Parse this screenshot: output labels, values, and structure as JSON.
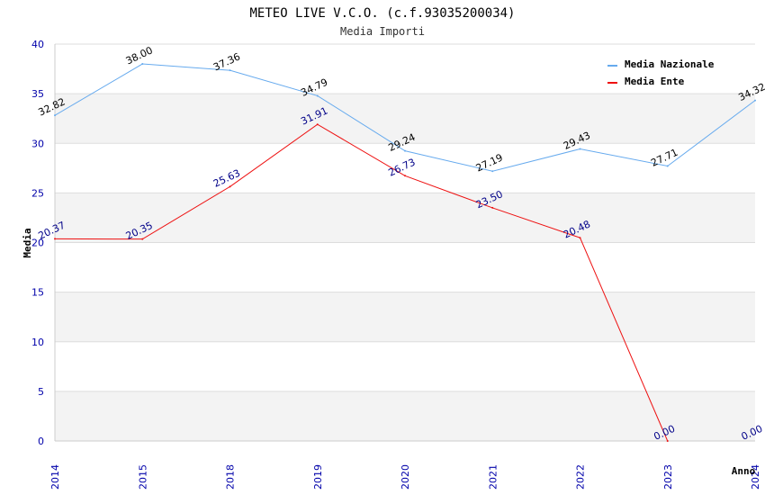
{
  "chart_data": {
    "type": "line",
    "title": "METEO LIVE V.C.O. (c.f.93035200034)",
    "subtitle": "Media Importi",
    "xlabel": "Anno",
    "ylabel": "Media",
    "categories": [
      "2014",
      "2015",
      "2018",
      "2019",
      "2020",
      "2021",
      "2022",
      "2023",
      "2024"
    ],
    "ylim": [
      0,
      40
    ],
    "yticks": [
      0,
      5,
      10,
      15,
      20,
      25,
      30,
      35,
      40
    ],
    "grid": "alternating horizontal bands",
    "legend_position": "top-right",
    "series": [
      {
        "name": "Media Nazionale",
        "color": "#66aaee",
        "label_color": "#000000",
        "values": [
          32.82,
          38.0,
          37.36,
          34.79,
          29.24,
          27.19,
          29.43,
          27.71,
          34.32
        ],
        "labels": [
          "32.82",
          "38.00",
          "37.36",
          "34.79",
          "29.24",
          "27.19",
          "29.43",
          "27.71",
          "34.32"
        ]
      },
      {
        "name": "Media Ente",
        "color": "#ee1111",
        "label_color": "#000088",
        "values": [
          20.37,
          20.35,
          25.63,
          31.91,
          26.73,
          23.5,
          20.48,
          0.0,
          null
        ],
        "labels": [
          "20.37",
          "20.35",
          "25.63",
          "31.91",
          "26.73",
          "23.50",
          "20.48",
          "0.00",
          "0.00"
        ]
      }
    ]
  }
}
